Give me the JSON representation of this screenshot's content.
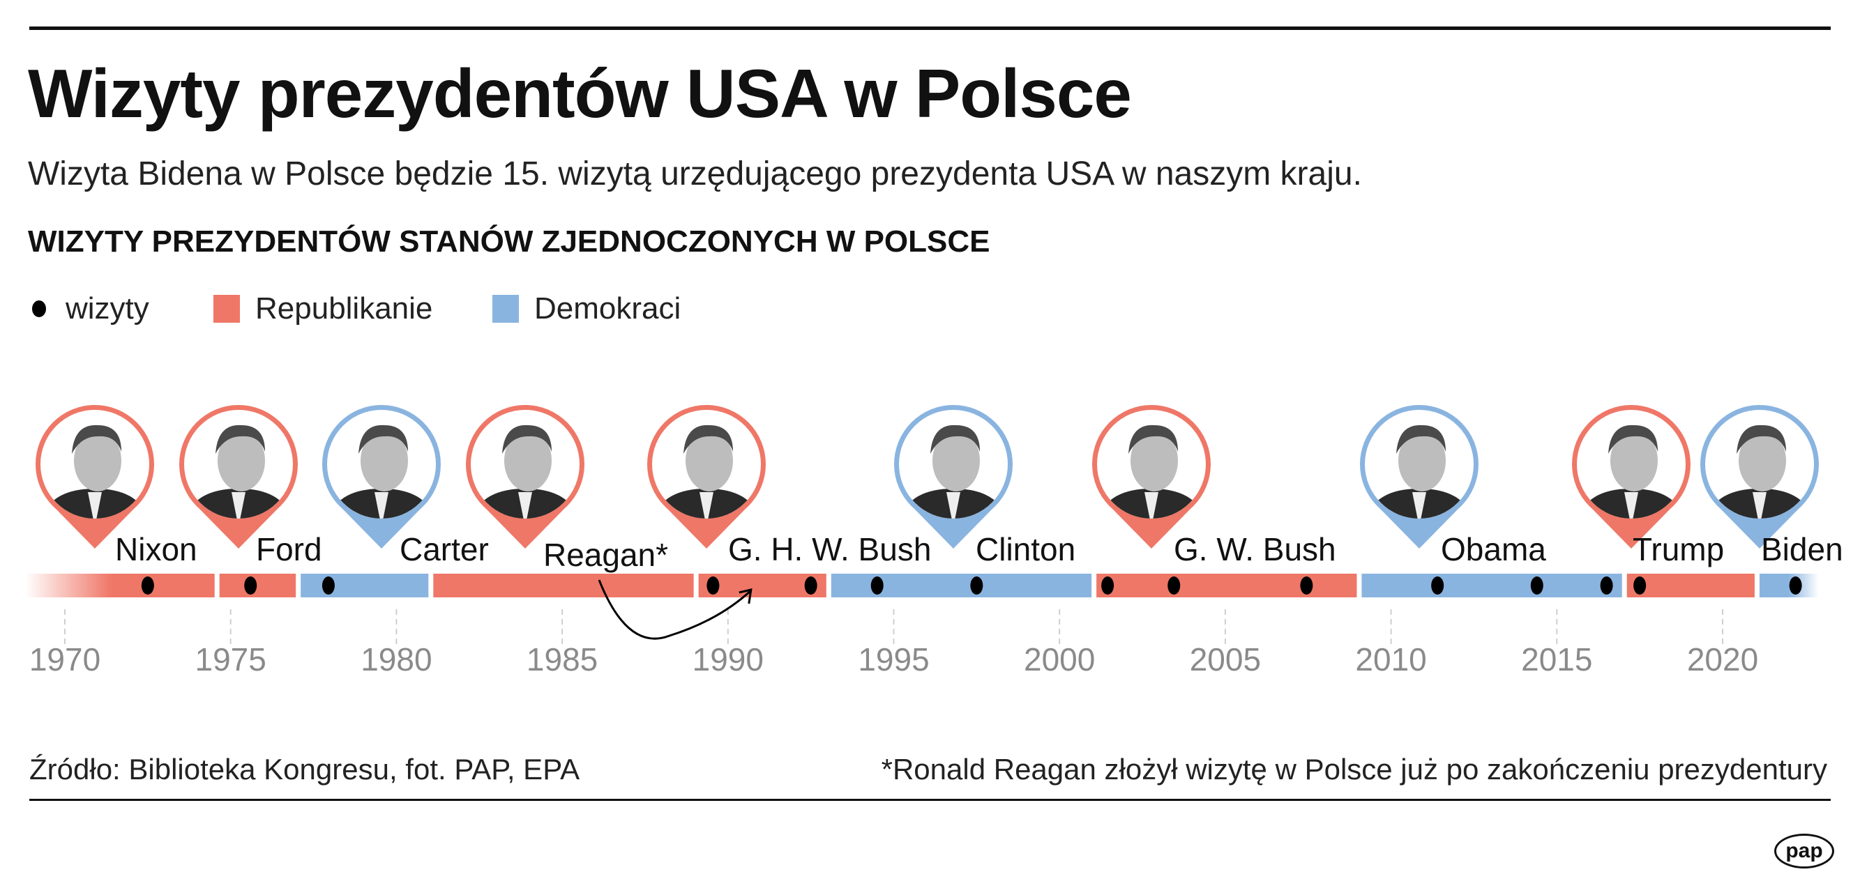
{
  "header": {
    "title": "Wizyty prezydentów USA w Polsce",
    "subtitle": "Wizyta Bidena w Polsce będzie 15. wizytą urzędującego prezydenta USA w naszym kraju.",
    "section_heading": "WIZYTY PREZYDENTÓW STANÓW ZJEDNOCZONYCH W POLSCE"
  },
  "legend": {
    "visits": "wizyty",
    "republicans": "Republikanie",
    "democrats": "Demokraci"
  },
  "colors": {
    "republican": "#ef7767",
    "democrat": "#8ab4e0",
    "visit": "#000000",
    "axis_text": "#8a8a8a"
  },
  "footer": {
    "source": "Źródło: Biblioteka Kongresu, fot. PAP, EPA",
    "note": "*Ronald Reagan złożył wizytę w Polsce już po zakończeniu prezydentury",
    "logo": "pap"
  },
  "chart_data": {
    "type": "timeline",
    "xlim": [
      1969,
      2023
    ],
    "x_ticks": [
      1970,
      1975,
      1980,
      1985,
      1990,
      1995,
      2000,
      2005,
      2010,
      2015,
      2020
    ],
    "presidents": [
      {
        "name": "Nixon",
        "party": "republican",
        "start": 1969.05,
        "end": 1974.6,
        "visits": [
          1972.5
        ]
      },
      {
        "name": "Ford",
        "party": "republican",
        "start": 1974.6,
        "end": 1977.05,
        "visits": [
          1975.6
        ]
      },
      {
        "name": "Carter",
        "party": "democrat",
        "start": 1977.05,
        "end": 1981.05,
        "visits": [
          1977.95
        ]
      },
      {
        "name": "Reagan*",
        "party": "republican",
        "start": 1981.05,
        "end": 1989.05,
        "visits": [],
        "post_term_visits": [
          1990.8
        ]
      },
      {
        "name": "G. H. W. Bush",
        "party": "republican",
        "start": 1989.05,
        "end": 1993.05,
        "visits": [
          1989.55,
          1992.5
        ]
      },
      {
        "name": "Clinton",
        "party": "democrat",
        "start": 1993.05,
        "end": 2001.05,
        "visits": [
          1994.5,
          1997.5
        ]
      },
      {
        "name": "G. W. Bush",
        "party": "republican",
        "start": 2001.05,
        "end": 2009.05,
        "visits": [
          2001.45,
          2003.45,
          2007.45
        ]
      },
      {
        "name": "Obama",
        "party": "democrat",
        "start": 2009.05,
        "end": 2017.05,
        "visits": [
          2011.4,
          2014.4,
          2016.5
        ]
      },
      {
        "name": "Trump",
        "party": "republican",
        "start": 2017.05,
        "end": 2021.05,
        "visits": [
          2017.5
        ]
      },
      {
        "name": "Biden",
        "party": "democrat",
        "start": 2021.05,
        "end": 2022.8,
        "visits": [
          2022.2
        ]
      }
    ]
  }
}
